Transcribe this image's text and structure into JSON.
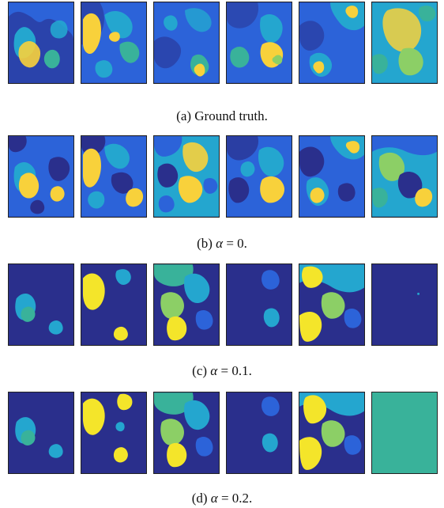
{
  "figure": {
    "colors": {
      "dark": "#2a2f8c",
      "blue": "#2c63d9",
      "cyan": "#24a6cf",
      "teal": "#39b29a",
      "green": "#8ccf66",
      "yellow": "#f8d13b",
      "bright_yellow": "#f4e52a"
    },
    "panels": [
      {
        "id": "a",
        "caption_prefix": "(a) Ground truth.",
        "alpha": null
      },
      {
        "id": "b",
        "caption_prefix": "(b)",
        "alpha": "α",
        "equals": "=",
        "value": "0."
      },
      {
        "id": "c",
        "caption_prefix": "(c)",
        "alpha": "α",
        "equals": "=",
        "value": "0.1."
      },
      {
        "id": "d",
        "caption_prefix": "(d)",
        "alpha": "α",
        "equals": "=",
        "value": "0.2."
      }
    ]
  }
}
